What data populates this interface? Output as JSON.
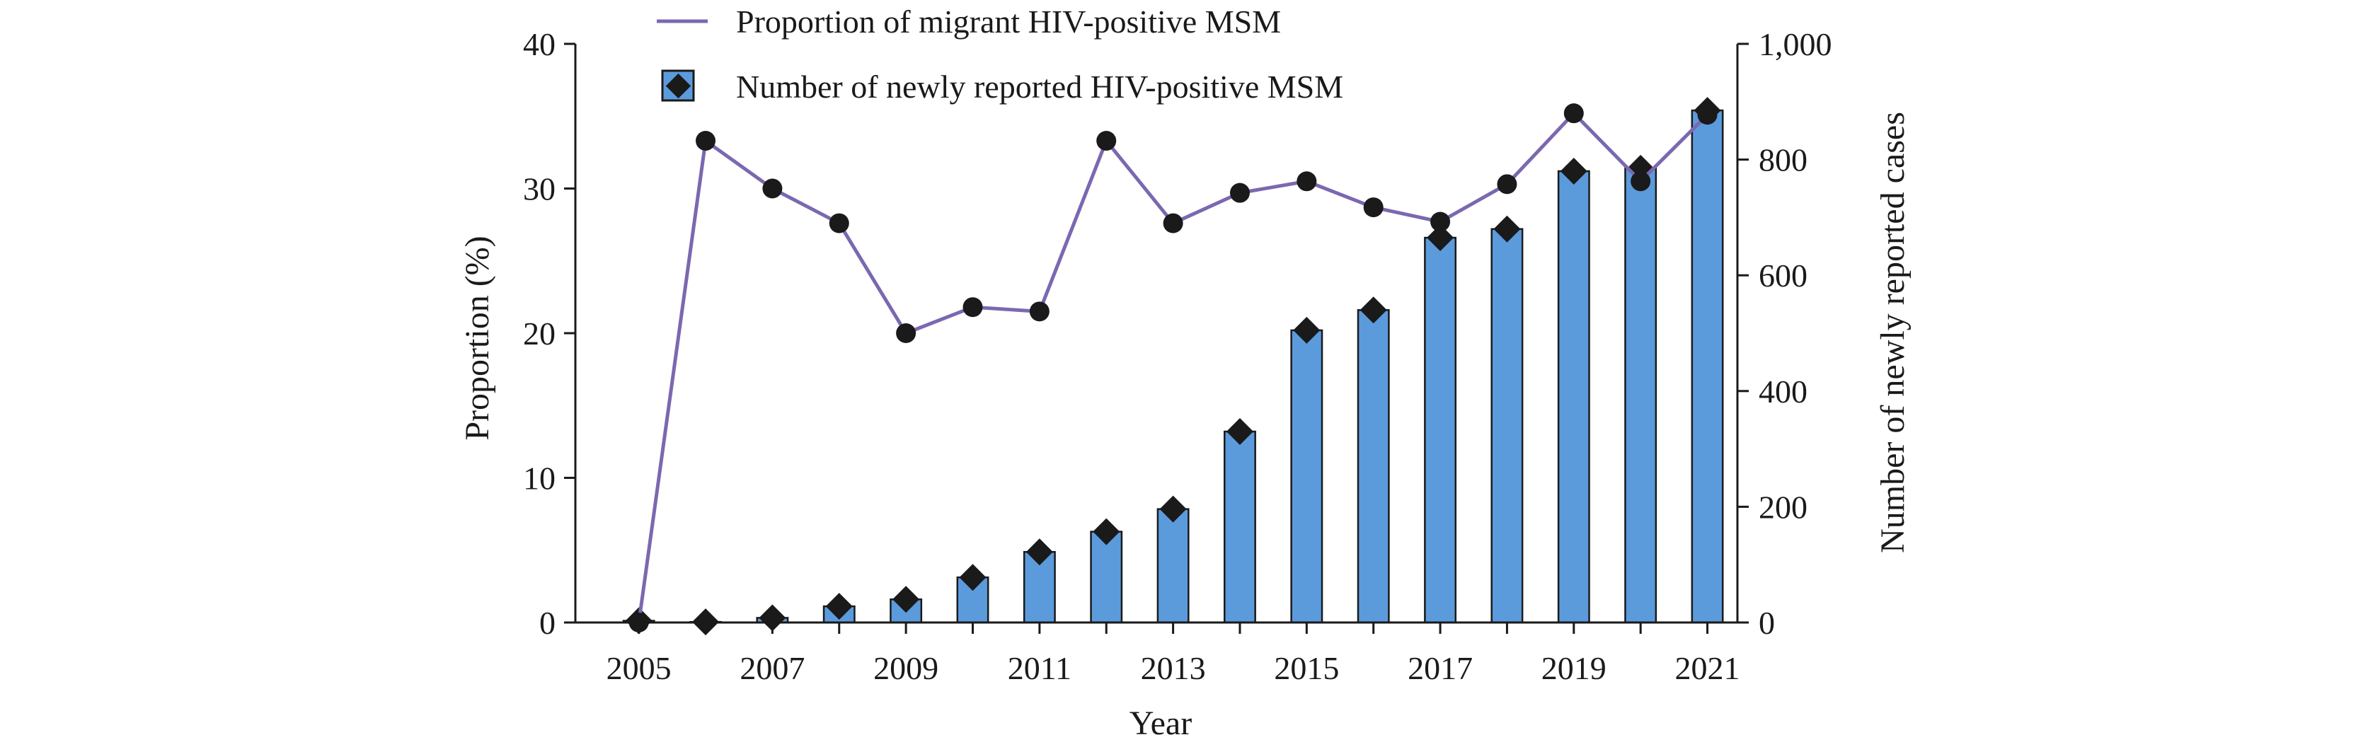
{
  "chart_data": {
    "type": "bar+line",
    "title": "",
    "xlabel": "Year",
    "ylabel_left": "Proportion (%)",
    "ylabel_right": "Number of newly reported cases",
    "ylim_left": [
      0,
      40
    ],
    "ylim_right": [
      0,
      1000
    ],
    "yticks_left": [
      0,
      10,
      20,
      30,
      40
    ],
    "yticks_right": [
      0,
      200,
      400,
      600,
      800,
      1000
    ],
    "ytick_labels_right": [
      "0",
      "200",
      "400",
      "600",
      "800",
      "1,000"
    ],
    "xticks": [
      "2005",
      "2007",
      "2009",
      "2011",
      "2013",
      "2015",
      "2017",
      "2019",
      "2021"
    ],
    "years": [
      2005,
      2006,
      2007,
      2008,
      2009,
      2010,
      2011,
      2012,
      2013,
      2014,
      2015,
      2016,
      2017,
      2018,
      2019,
      2020,
      2021
    ],
    "series": [
      {
        "name": "Proportion of migrant HIV-positive MSM",
        "type": "line",
        "axis": "left",
        "color": "#7b68b0",
        "marker_color": "#1a1a1a",
        "values": [
          0,
          33.3,
          30.0,
          27.6,
          20.0,
          21.8,
          21.5,
          33.3,
          27.6,
          29.7,
          30.5,
          28.7,
          27.7,
          30.3,
          35.2,
          30.5,
          35.1
        ]
      },
      {
        "name": "Number of newly reported HIV-positive MSM",
        "type": "bar",
        "axis": "right",
        "color": "#5b9bdc",
        "marker_color": "#1a1a1a",
        "values": [
          3,
          1,
          8,
          28,
          40,
          78,
          122,
          157,
          196,
          330,
          505,
          540,
          665,
          680,
          780,
          785,
          885
        ]
      }
    ],
    "legend_position": "top"
  }
}
